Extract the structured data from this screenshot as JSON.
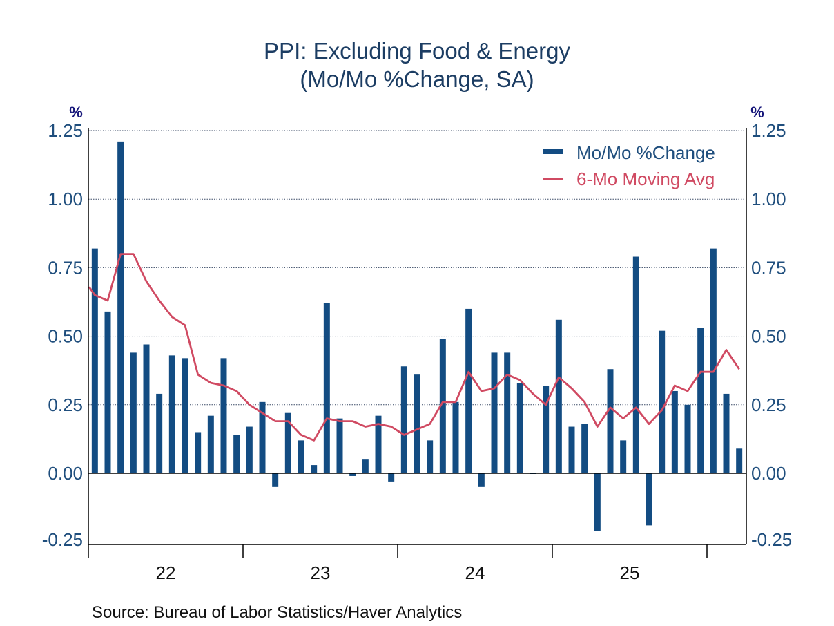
{
  "chart_data": {
    "type": "bar",
    "title": "PPI: Excluding Food & Energy",
    "subtitle": "(Mo/Mo %Change, SA)",
    "ylabel_left": "%",
    "ylabel_right": "%",
    "xlabel": "",
    "ylim": [
      -0.26,
      1.26
    ],
    "yticks": [
      -0.25,
      0.0,
      0.25,
      0.5,
      0.75,
      1.0,
      1.25
    ],
    "ytick_labels": [
      "-0.25",
      "0.00",
      "0.25",
      "0.50",
      "0.75",
      "1.00",
      "1.25"
    ],
    "grid": true,
    "x_start": "2022-01",
    "x_months": 51,
    "xtick_years": [
      "22",
      "23",
      "24",
      "25"
    ],
    "legend_position": "top-right",
    "source": "Source:  Bureau of Labor Statistics/Haver Analytics",
    "colors": {
      "bars": "#134c82",
      "line": "#d04a62"
    },
    "categories": [
      "2022-01",
      "2022-02",
      "2022-03",
      "2022-04",
      "2022-05",
      "2022-06",
      "2022-07",
      "2022-08",
      "2022-09",
      "2022-10",
      "2022-11",
      "2022-12",
      "2023-01",
      "2023-02",
      "2023-03",
      "2023-04",
      "2023-05",
      "2023-06",
      "2023-07",
      "2023-08",
      "2023-09",
      "2023-10",
      "2023-11",
      "2023-12",
      "2024-01",
      "2024-02",
      "2024-03",
      "2024-04",
      "2024-05",
      "2024-06",
      "2024-07",
      "2024-08",
      "2024-09",
      "2024-10",
      "2024-11",
      "2024-12",
      "2025-01",
      "2025-02",
      "2025-03",
      "2025-04",
      "2025-05",
      "2025-06",
      "2025-07",
      "2025-08",
      "2025-09",
      "2025-10",
      "2025-11",
      "2025-12",
      "2026-01",
      "2026-02",
      "2026-03"
    ],
    "series": [
      {
        "name": "Mo/Mo %Change",
        "type": "bar",
        "values": [
          0.82,
          0.59,
          1.21,
          0.44,
          0.47,
          0.29,
          0.43,
          0.42,
          0.15,
          0.21,
          0.42,
          0.14,
          0.17,
          0.26,
          -0.05,
          0.22,
          0.12,
          0.03,
          0.62,
          0.2,
          -0.01,
          0.05,
          0.21,
          -0.03,
          0.39,
          0.36,
          0.12,
          0.49,
          0.26,
          0.6,
          -0.05,
          0.44,
          0.44,
          0.33,
          0.0,
          0.32,
          0.56,
          0.17,
          0.18,
          -0.21,
          0.38,
          0.12,
          0.79,
          -0.19,
          0.52,
          0.3,
          0.25,
          0.53,
          0.82,
          0.29,
          0.09
        ]
      },
      {
        "name": "6-Mo Moving Avg",
        "type": "line",
        "value_at_left_edge": 0.68,
        "values": [
          0.65,
          0.63,
          0.8,
          0.8,
          0.7,
          0.63,
          0.57,
          0.54,
          0.36,
          0.33,
          0.32,
          0.3,
          0.25,
          0.22,
          0.19,
          0.19,
          0.14,
          0.12,
          0.2,
          0.19,
          0.19,
          0.17,
          0.18,
          0.17,
          0.14,
          0.16,
          0.18,
          0.26,
          0.26,
          0.37,
          0.3,
          0.31,
          0.36,
          0.34,
          0.29,
          0.25,
          0.35,
          0.31,
          0.26,
          0.17,
          0.24,
          0.2,
          0.24,
          0.18,
          0.23,
          0.32,
          0.3,
          0.37,
          0.37,
          0.45,
          0.38
        ]
      }
    ]
  }
}
